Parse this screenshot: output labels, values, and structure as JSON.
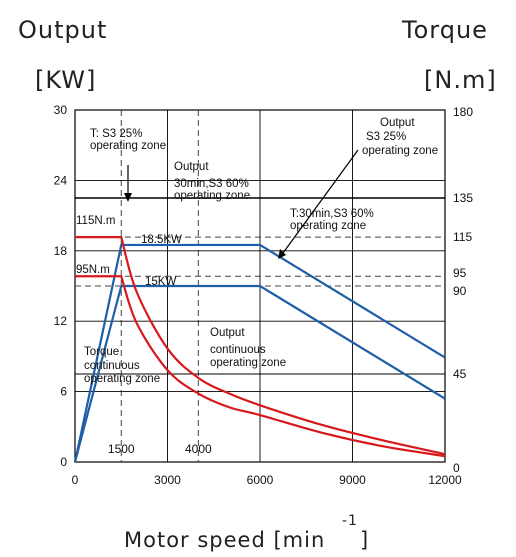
{
  "chart_data": {
    "type": "line",
    "title": "",
    "left_axis_title": "Output",
    "left_axis_unit": "[KW]",
    "right_axis_title": "Torque",
    "right_axis_unit": "[N.m]",
    "xlabel": "Motor speed [min",
    "xlabel_superscript": "-1",
    "xlabel_close": "]",
    "xlim": [
      0,
      12000
    ],
    "ylim_left": [
      0,
      30
    ],
    "ylim_right": [
      0,
      180
    ],
    "x_ticks": [
      "0",
      "3000",
      "6000",
      "9000",
      "12000"
    ],
    "x_tick_values": [
      0,
      3000,
      6000,
      9000,
      12000
    ],
    "y_left_ticks": [
      "0",
      "6",
      "12",
      "18",
      "24",
      "30"
    ],
    "y_left_tick_values": [
      0,
      6,
      12,
      18,
      24,
      30
    ],
    "y_right_ticks": [
      "0",
      "45",
      "90",
      "95",
      "115",
      "135",
      "180"
    ],
    "y_right_tick_values": [
      0,
      45,
      90,
      95,
      115,
      135,
      180
    ],
    "x_markers": [
      {
        "x": 1500,
        "label": "1500"
      },
      {
        "x": 4000,
        "label": "4000"
      }
    ],
    "power_series": [
      {
        "label": "18.5KW",
        "x": [
          0,
          1500,
          6000,
          12000
        ],
        "y": [
          0,
          18.5,
          18.5,
          8.9
        ]
      },
      {
        "label": "15KW",
        "x": [
          0,
          1500,
          6000,
          12000
        ],
        "y": [
          0,
          15,
          15,
          5.4
        ]
      }
    ],
    "torque_series": [
      {
        "label": "115N.m",
        "x": [
          0,
          1500,
          2000,
          3000,
          4000,
          5000,
          6000,
          8000,
          10000,
          12000
        ],
        "y": [
          115,
          115,
          87,
          58,
          43,
          35,
          29,
          19,
          11,
          4
        ]
      },
      {
        "label": "95N.m",
        "x": [
          0,
          1500,
          2000,
          3000,
          4000,
          5000,
          6000,
          8000,
          10000,
          12000
        ],
        "y": [
          95,
          95,
          71,
          47,
          35,
          28,
          24,
          15,
          8,
          3
        ]
      }
    ],
    "annotations": [
      {
        "lines": [
          "T: S3 25%",
          "operating zone"
        ]
      },
      {
        "lines": [
          "Output",
          "30min,S3 60%",
          "operating zone"
        ]
      },
      {
        "lines": [
          "Output",
          "S3 25%",
          "operating zone"
        ]
      },
      {
        "lines": [
          "T:30min,S3 60%",
          "operating zone"
        ]
      },
      {
        "lines": [
          "Torque",
          "continuous",
          "operating zone"
        ]
      },
      {
        "lines": [
          "Output",
          "continuous",
          "operating zone"
        ]
      }
    ],
    "colors": {
      "power": "#1f5fa8",
      "torque": "#d7191c",
      "grid": "#000000",
      "dashed": "#444444"
    }
  }
}
